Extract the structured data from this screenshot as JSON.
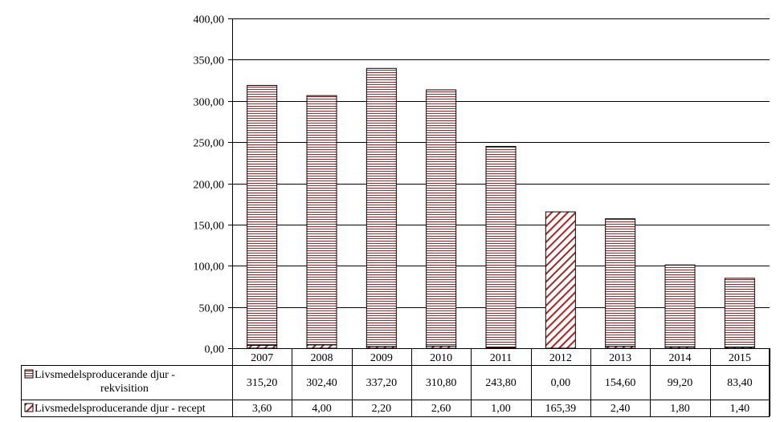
{
  "chart_data": {
    "type": "bar",
    "stacked": true,
    "categories": [
      "2007",
      "2008",
      "2009",
      "2010",
      "2011",
      "2012",
      "2013",
      "2014",
      "2015"
    ],
    "series": [
      {
        "name": "Livsmedelsproducerande djur - rekvisition",
        "pattern": "horizontal-lines",
        "values": [
          315.2,
          302.4,
          337.2,
          310.8,
          243.8,
          0.0,
          154.6,
          99.2,
          83.4
        ],
        "labels": [
          "315,20",
          "302,40",
          "337,20",
          "310,80",
          "243,80",
          "0,00",
          "154,60",
          "99,20",
          "83,40"
        ]
      },
      {
        "name": "Livsmedelsproducerande djur - recept",
        "pattern": "diagonal-stripes",
        "values": [
          3.6,
          4.0,
          2.2,
          2.6,
          1.0,
          165.39,
          2.4,
          1.8,
          1.4
        ],
        "labels": [
          "3,60",
          "4,00",
          "2,20",
          "2,60",
          "1,00",
          "165,39",
          "2,40",
          "1,80",
          "1,40"
        ]
      }
    ],
    "ylim": [
      0,
      400
    ],
    "yticks": [
      0,
      50,
      100,
      150,
      200,
      250,
      300,
      350,
      400
    ],
    "ytick_labels": [
      "0,00",
      "50,00",
      "100,00",
      "150,00",
      "200,00",
      "250,00",
      "300,00",
      "350,00",
      "400,00"
    ],
    "grid": true,
    "legend": "data-table-below",
    "colors": {
      "bar": "#b22222",
      "axis": "#000000",
      "background": "#ffffff"
    }
  }
}
